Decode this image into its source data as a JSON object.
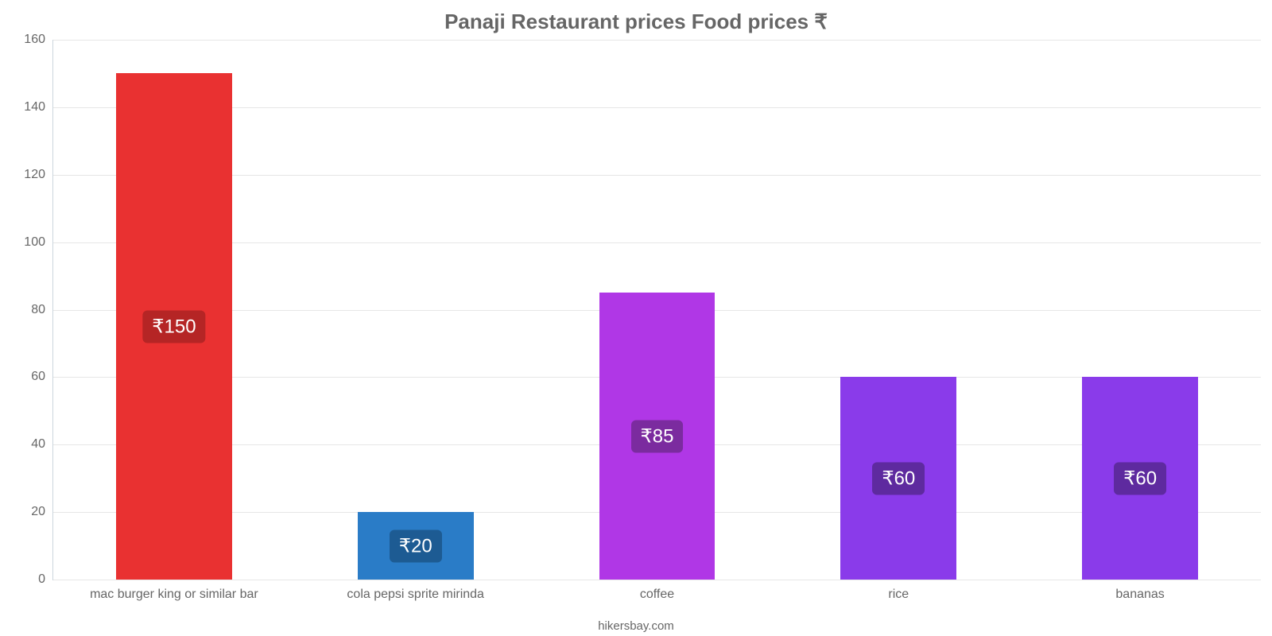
{
  "chart": {
    "type": "bar",
    "title": "Panaji Restaurant prices Food prices ₹",
    "title_fontsize": 26,
    "title_color": "#666666",
    "title_weight": "700",
    "background_color": "#ffffff",
    "axis_line_color": "#ccd6dc",
    "grid_color": "#e6e6e6",
    "y": {
      "min": 0,
      "max": 160,
      "tick_step": 20,
      "tick_fontsize": 16,
      "tick_color": "#666666"
    },
    "x_label_fontsize": 16,
    "x_label_color": "#666666",
    "bar_cluster_gap": 0.52,
    "value_badge_fontsize": 24,
    "value_badge_radius": 6,
    "bars": [
      {
        "label": "mac burger king or similar bar",
        "value": 150,
        "display": "₹150",
        "bar_color": "#e93131",
        "badge_color": "#b52525"
      },
      {
        "label": "cola pepsi sprite mirinda",
        "value": 20,
        "display": "₹20",
        "bar_color": "#2a7cc7",
        "badge_color": "#1d5b93"
      },
      {
        "label": "coffee",
        "value": 85,
        "display": "₹85",
        "bar_color": "#b037e6",
        "badge_color": "#7b2b9f"
      },
      {
        "label": "rice",
        "value": 60,
        "display": "₹60",
        "bar_color": "#8a3bea",
        "badge_color": "#5e2a9f"
      },
      {
        "label": "bananas",
        "value": 60,
        "display": "₹60",
        "bar_color": "#8a3bea",
        "badge_color": "#5e2a9f"
      }
    ],
    "credit": "hikersbay.com",
    "credit_fontsize": 15,
    "credit_color": "#666666"
  }
}
